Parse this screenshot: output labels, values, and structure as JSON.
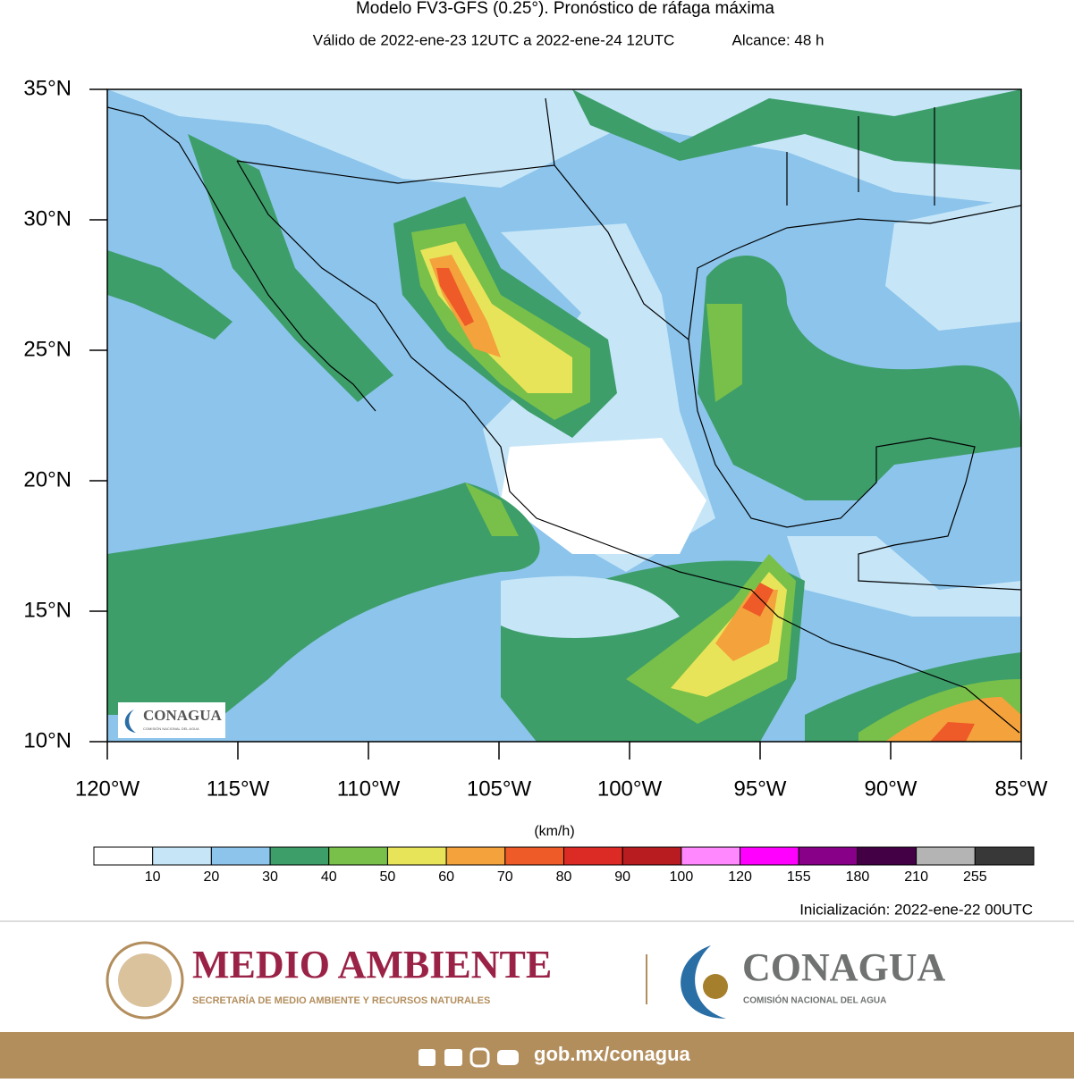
{
  "title": "Modelo FV3-GFS (0.25°). Pronóstico de ráfaga máxima",
  "valid": "Válido de 2022-ene-23 12UTC a 2022-ene-24 12UTC",
  "range": "Alcance: 48 h",
  "map": {
    "xlim": [
      -120,
      -85
    ],
    "ylim": [
      10,
      35
    ],
    "lon_ticks": [
      {
        "value": -120,
        "label": "120°W"
      },
      {
        "value": -115,
        "label": "115°W"
      },
      {
        "value": -110,
        "label": "110°W"
      },
      {
        "value": -105,
        "label": "105°W"
      },
      {
        "value": -100,
        "label": "100°W"
      },
      {
        "value": -95,
        "label": "95°W"
      },
      {
        "value": -90,
        "label": "90°W"
      },
      {
        "value": -85,
        "label": "85°W"
      }
    ],
    "lat_ticks": [
      {
        "value": 10,
        "label": "10°N"
      },
      {
        "value": 15,
        "label": "15°N"
      },
      {
        "value": 20,
        "label": "20°N"
      },
      {
        "value": 25,
        "label": "25°N"
      },
      {
        "value": 30,
        "label": "30°N"
      },
      {
        "value": 35,
        "label": "35°N"
      }
    ],
    "logo": {
      "name": "CONAGUA",
      "tagline": "COMISIÓN NACIONAL DEL AGUA"
    }
  },
  "colorbar": {
    "units": "(km/h)",
    "colors": [
      "#ffffff",
      "#c6e6f8",
      "#8cc4eb",
      "#3d9e6a",
      "#78c04a",
      "#e8e45a",
      "#f4a23c",
      "#ee5a28",
      "#dc2a24",
      "#b81c20",
      "#ff88ff",
      "#ff00ff",
      "#880088",
      "#440044",
      "#b4b4b4",
      "#383838"
    ],
    "ticks": [
      10,
      20,
      30,
      40,
      50,
      60,
      70,
      80,
      90,
      100,
      120,
      155,
      180,
      210,
      255
    ]
  },
  "initialization": "Inicialización: 2022-ene-22 00UTC",
  "footer": {
    "brand": "MEDIO AMBIENTE",
    "brand_sub": "SECRETARÍA DE MEDIO AMBIENTE Y RECURSOS NATURALES",
    "agency": "CONAGUA",
    "agency_sub": "COMISIÓN NACIONAL DEL AGUA",
    "url": "gob.mx/conagua"
  }
}
